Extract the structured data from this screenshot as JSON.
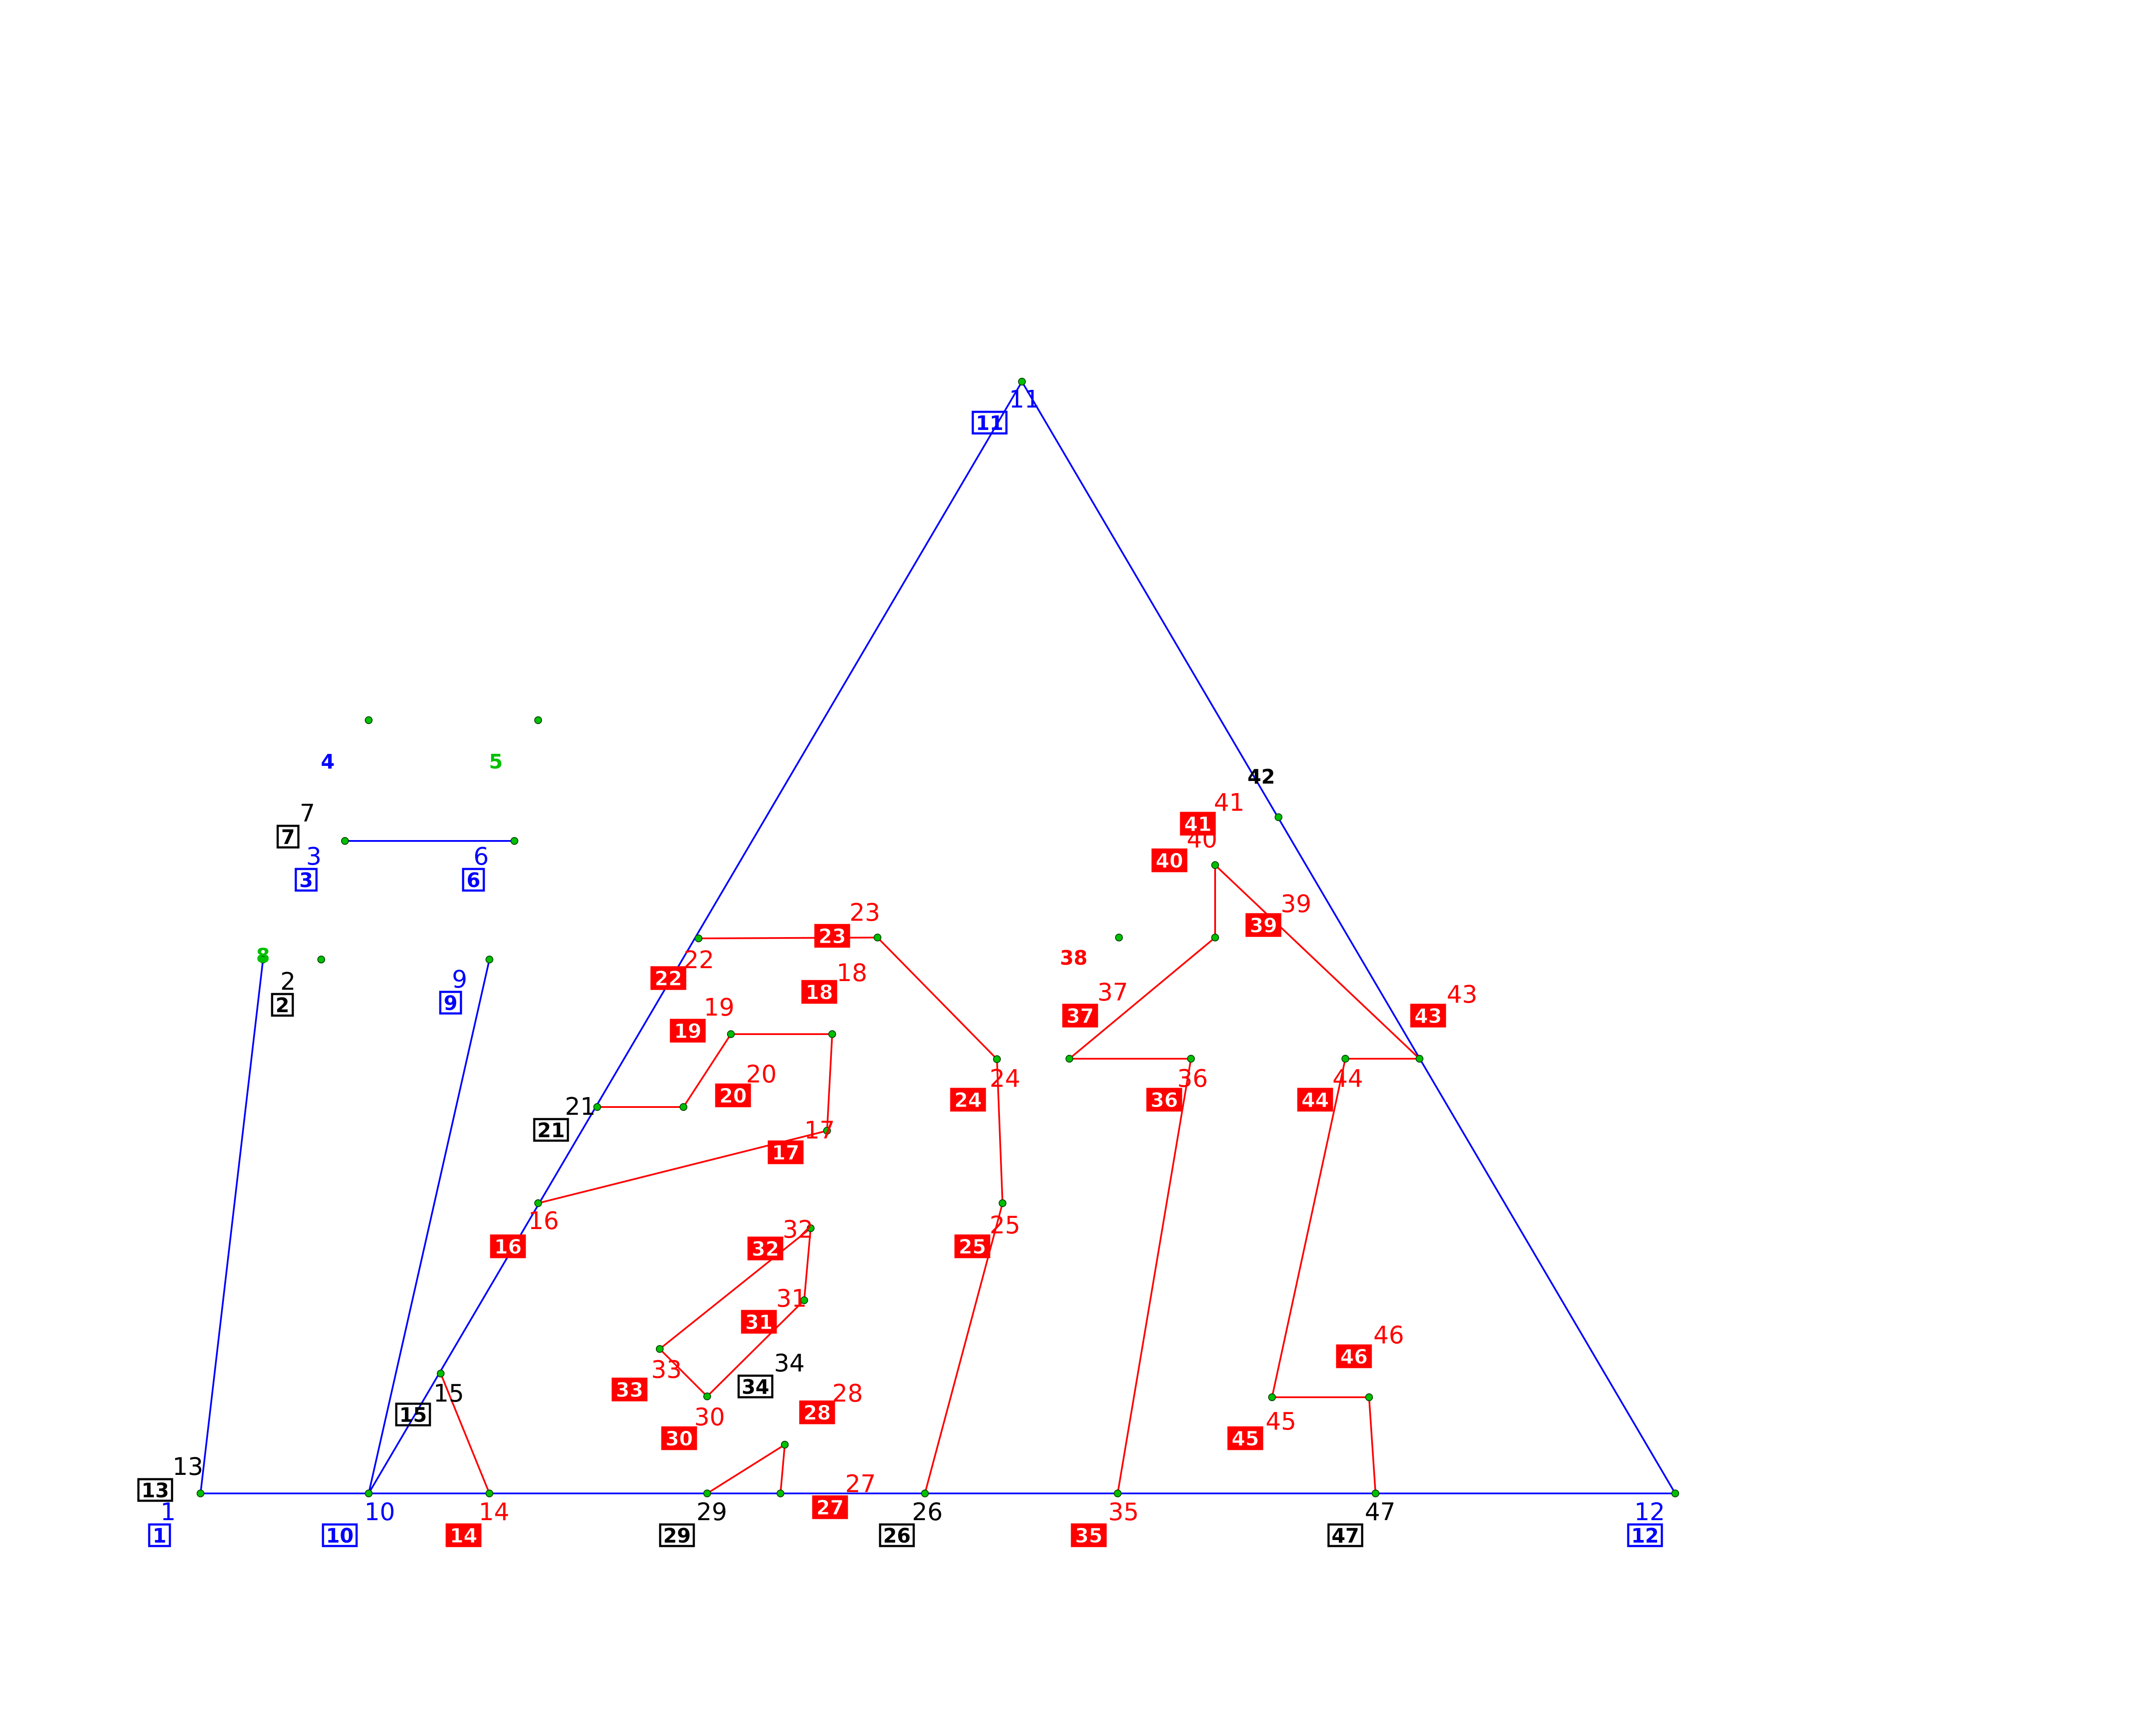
{
  "colors": {
    "blue": "#0000ff",
    "red": "#ff0000",
    "black": "#000000",
    "green": "#00c000"
  },
  "nodes": [
    {
      "id": "1",
      "label": "1",
      "color": "blue"
    },
    {
      "id": "2",
      "label": "2",
      "color": "black"
    },
    {
      "id": "3",
      "label": "3",
      "color": "blue"
    },
    {
      "id": "4",
      "label": "",
      "color": "blue"
    },
    {
      "id": "5",
      "label": "",
      "color": "green"
    },
    {
      "id": "6",
      "label": "6",
      "color": "blue"
    },
    {
      "id": "7",
      "label": "7",
      "color": "black"
    },
    {
      "id": "8",
      "label": "",
      "color": "green"
    },
    {
      "id": "9",
      "label": "9",
      "color": "blue"
    },
    {
      "id": "10",
      "label": "10",
      "color": "blue"
    },
    {
      "id": "11",
      "label": "11",
      "color": "blue"
    },
    {
      "id": "12",
      "label": "12",
      "color": "blue"
    },
    {
      "id": "13",
      "label": "13",
      "color": "black"
    },
    {
      "id": "14",
      "label": "14",
      "color": "red"
    },
    {
      "id": "15",
      "label": "15",
      "color": "black"
    },
    {
      "id": "16",
      "label": "16",
      "color": "red"
    },
    {
      "id": "17",
      "label": "17",
      "color": "red"
    },
    {
      "id": "18",
      "label": "18",
      "color": "red"
    },
    {
      "id": "19",
      "label": "19",
      "color": "red"
    },
    {
      "id": "20",
      "label": "20",
      "color": "red"
    },
    {
      "id": "21",
      "label": "21",
      "color": "black"
    },
    {
      "id": "22",
      "label": "22",
      "color": "red"
    },
    {
      "id": "23",
      "label": "23",
      "color": "red"
    },
    {
      "id": "24",
      "label": "24",
      "color": "red"
    },
    {
      "id": "25",
      "label": "25",
      "color": "red"
    },
    {
      "id": "26",
      "label": "26",
      "color": "black"
    },
    {
      "id": "27",
      "label": "27",
      "color": "red"
    },
    {
      "id": "28",
      "label": "28",
      "color": "red"
    },
    {
      "id": "29",
      "label": "29",
      "color": "black"
    },
    {
      "id": "30",
      "label": "30",
      "color": "red"
    },
    {
      "id": "31",
      "label": "31",
      "color": "red"
    },
    {
      "id": "32",
      "label": "32",
      "color": "red"
    },
    {
      "id": "33",
      "label": "33",
      "color": "red"
    },
    {
      "id": "34",
      "label": "34",
      "color": "black"
    },
    {
      "id": "35",
      "label": "35",
      "color": "red"
    },
    {
      "id": "36",
      "label": "36",
      "color": "red"
    },
    {
      "id": "37",
      "label": "37",
      "color": "red"
    },
    {
      "id": "38",
      "label": "",
      "color": "green"
    },
    {
      "id": "39",
      "label": "39",
      "color": "red"
    },
    {
      "id": "40",
      "label": "40",
      "color": "red"
    },
    {
      "id": "41",
      "label": "41",
      "color": "red"
    },
    {
      "id": "42",
      "label": "",
      "color": "blue"
    },
    {
      "id": "43",
      "label": "43",
      "color": "red"
    },
    {
      "id": "44",
      "label": "44",
      "color": "red"
    },
    {
      "id": "45",
      "label": "45",
      "color": "red"
    },
    {
      "id": "46",
      "label": "46",
      "color": "red"
    },
    {
      "id": "47",
      "label": "47",
      "color": "black"
    }
  ],
  "edges": [
    {
      "id": "1",
      "label": "1",
      "color": "blue",
      "from": "1",
      "to": "10"
    },
    {
      "id": "2",
      "label": "2",
      "color": "black",
      "from": "1",
      "to": "8"
    },
    {
      "id": "3",
      "label": "3",
      "color": "blue",
      "from": "3",
      "to": "6"
    },
    {
      "id": "4",
      "label": "4",
      "color": "blue",
      "from": "",
      "to": ""
    },
    {
      "id": "5",
      "label": "5",
      "color": "green",
      "from": "",
      "to": ""
    },
    {
      "id": "6",
      "label": "6",
      "color": "blue",
      "from": "",
      "to": ""
    },
    {
      "id": "7",
      "label": "7",
      "color": "black",
      "from": "",
      "to": ""
    },
    {
      "id": "8",
      "label": "8",
      "color": "green",
      "from": "",
      "to": ""
    },
    {
      "id": "9",
      "label": "9",
      "color": "blue",
      "from": "10",
      "to": "9"
    },
    {
      "id": "10",
      "label": "10",
      "color": "blue",
      "from": "",
      "to": ""
    },
    {
      "id": "11",
      "label": "11",
      "color": "blue",
      "from": "10",
      "to": "11"
    },
    {
      "id": "12",
      "label": "12",
      "color": "blue",
      "from": "10",
      "to": "12"
    },
    {
      "id": "13",
      "label": "13",
      "color": "black",
      "from": "",
      "to": ""
    },
    {
      "id": "14",
      "label": "14",
      "color": "red",
      "from": "15",
      "to": "14"
    },
    {
      "id": "15",
      "label": "15",
      "color": "black",
      "from": "",
      "to": ""
    },
    {
      "id": "16",
      "label": "16",
      "color": "red",
      "from": "",
      "to": ""
    },
    {
      "id": "17",
      "label": "17",
      "color": "red",
      "from": "16",
      "to": "17"
    },
    {
      "id": "18",
      "label": "18",
      "color": "red",
      "from": "17",
      "to": "18"
    },
    {
      "id": "19",
      "label": "19",
      "color": "red",
      "from": "20",
      "to": "19"
    },
    {
      "id": "20",
      "label": "20",
      "color": "red",
      "from": "21",
      "to": "20"
    },
    {
      "id": "21",
      "label": "21",
      "color": "black",
      "from": "",
      "to": ""
    },
    {
      "id": "22",
      "label": "22",
      "color": "red",
      "from": "",
      "to": ""
    },
    {
      "id": "23",
      "label": "23",
      "color": "red",
      "from": "22",
      "to": "23"
    },
    {
      "id": "24",
      "label": "24",
      "color": "red",
      "from": "23",
      "to": "24"
    },
    {
      "id": "25",
      "label": "25",
      "color": "red",
      "from": "24",
      "to": "25"
    },
    {
      "id": "26",
      "label": "26",
      "color": "black",
      "from": "25",
      "to": "26"
    },
    {
      "id": "27",
      "label": "27",
      "color": "red",
      "from": "",
      "to": ""
    },
    {
      "id": "28",
      "label": "28",
      "color": "red",
      "from": "",
      "to": ""
    },
    {
      "id": "29",
      "label": "29",
      "color": "black",
      "from": "29",
      "to": "28"
    },
    {
      "id": "30",
      "label": "30",
      "color": "red",
      "from": "33",
      "to": "30"
    },
    {
      "id": "31",
      "label": "31",
      "color": "red",
      "from": "30",
      "to": "31"
    },
    {
      "id": "32",
      "label": "32",
      "color": "red",
      "from": "31",
      "to": "32"
    },
    {
      "id": "33",
      "label": "33",
      "color": "red",
      "from": "32",
      "to": "33"
    },
    {
      "id": "34",
      "label": "34",
      "color": "black",
      "from": "",
      "to": ""
    },
    {
      "id": "35",
      "label": "35",
      "color": "red",
      "from": "35",
      "to": "36"
    },
    {
      "id": "36",
      "label": "36",
      "color": "red",
      "from": "37",
      "to": "36"
    },
    {
      "id": "37",
      "label": "37",
      "color": "red",
      "from": "37",
      "to": "39"
    },
    {
      "id": "38",
      "label": "38",
      "color": "red",
      "from": "",
      "to": ""
    },
    {
      "id": "39",
      "label": "39",
      "color": "red",
      "from": "39",
      "to": "40"
    },
    {
      "id": "40",
      "label": "40",
      "color": "red",
      "from": "",
      "to": ""
    },
    {
      "id": "41",
      "label": "41",
      "color": "red",
      "from": "",
      "to": ""
    },
    {
      "id": "42",
      "label": "42",
      "color": "black",
      "from": "",
      "to": ""
    },
    {
      "id": "43",
      "label": "43",
      "color": "red",
      "from": "40",
      "to": "43"
    },
    {
      "id": "44",
      "label": "44",
      "color": "red",
      "from": "44",
      "to": "43"
    },
    {
      "id": "45",
      "label": "45",
      "color": "red",
      "from": "44",
      "to": "45"
    },
    {
      "id": "46",
      "label": "46",
      "color": "red",
      "from": "45",
      "to": "46"
    },
    {
      "id": "47",
      "label": "47",
      "color": "black",
      "from": "46",
      "to": "47"
    }
  ]
}
